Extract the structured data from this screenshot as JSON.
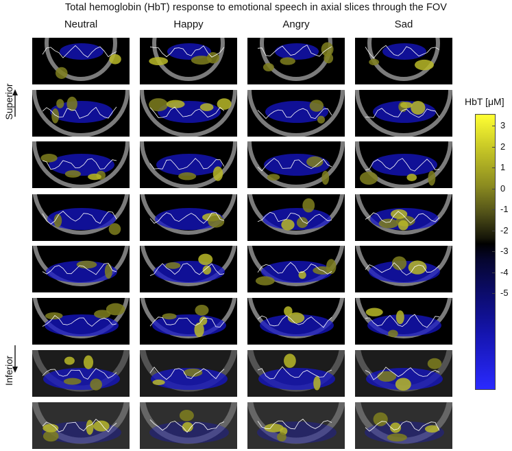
{
  "title": "Total hemoglobin (HbT) response to  emotional speech in axial slices through the FOV",
  "columns": [
    "Neutral",
    "Happy",
    "Angry",
    "Sad"
  ],
  "axis_labels": {
    "superior": "Superior",
    "inferior": "Inferior"
  },
  "colorbar": {
    "title": "HbT [μM]",
    "ticks": [
      "3",
      "2",
      "1",
      "0",
      "-1",
      "-2",
      "-3",
      "-4",
      "-5"
    ],
    "colors": {
      "max": "#ffff33",
      "zero": "#000000",
      "min": "#2a2aff"
    }
  },
  "slice_rows": 8
}
